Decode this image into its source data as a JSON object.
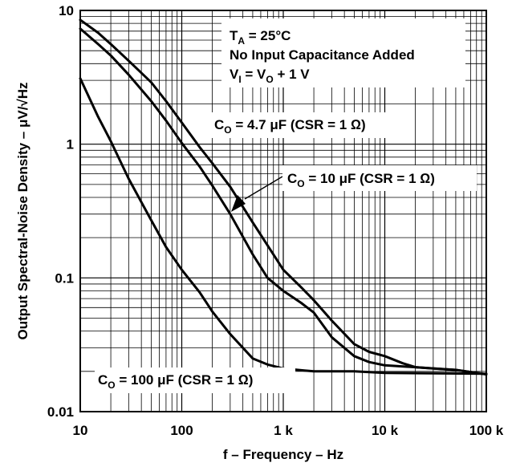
{
  "chart_data": {
    "type": "line",
    "title": "",
    "xlabel": "f – Frequency – Hz",
    "ylabel": "Output Spectral-Noise Density –  μV/√Hz",
    "xscale": "log",
    "yscale": "log",
    "xlim": [
      10,
      100000
    ],
    "ylim": [
      0.01,
      10
    ],
    "grid": true,
    "x_ticks": [
      {
        "value": 10,
        "label": "10"
      },
      {
        "value": 100,
        "label": "100"
      },
      {
        "value": 1000,
        "label": "1 k"
      },
      {
        "value": 10000,
        "label": "10 k"
      },
      {
        "value": 100000,
        "label": "100 k"
      }
    ],
    "y_ticks": [
      {
        "value": 10,
        "label": "10"
      },
      {
        "value": 1,
        "label": "1"
      },
      {
        "value": 0.1,
        "label": "0.1"
      },
      {
        "value": 0.01,
        "label": "0.01"
      }
    ],
    "conditions": {
      "line1": {
        "main": "T",
        "sub": "A",
        "rest": " = 25°C"
      },
      "line2": "No Input Capacitance Added",
      "line3": {
        "main1": "V",
        "sub1": "I",
        "mid": " = V",
        "sub2": "O",
        "rest": " + 1 V"
      }
    },
    "series": [
      {
        "label": {
          "main": "C",
          "sub": "O",
          "rest": " = 4.7 μF (CSR = 1 Ω)"
        },
        "points": [
          [
            10,
            8.5
          ],
          [
            15,
            6.8
          ],
          [
            20,
            5.6
          ],
          [
            30,
            4.2
          ],
          [
            50,
            2.9
          ],
          [
            70,
            2.1
          ],
          [
            100,
            1.45
          ],
          [
            150,
            0.95
          ],
          [
            200,
            0.72
          ],
          [
            300,
            0.48
          ],
          [
            500,
            0.26
          ],
          [
            700,
            0.175
          ],
          [
            1000,
            0.115
          ],
          [
            1500,
            0.085
          ],
          [
            2000,
            0.068
          ],
          [
            3000,
            0.048
          ],
          [
            5000,
            0.032
          ],
          [
            7000,
            0.028
          ],
          [
            10000,
            0.026
          ],
          [
            15000,
            0.023
          ],
          [
            20000,
            0.0215
          ],
          [
            30000,
            0.021
          ],
          [
            50000,
            0.0205
          ],
          [
            100000,
            0.019
          ]
        ]
      },
      {
        "label": {
          "main": "C",
          "sub": "O",
          "rest": " = 10 μF (CSR = 1 Ω)"
        },
        "points": [
          [
            10,
            7.3
          ],
          [
            15,
            5.6
          ],
          [
            20,
            4.6
          ],
          [
            30,
            3.3
          ],
          [
            50,
            2.1
          ],
          [
            70,
            1.5
          ],
          [
            100,
            1.02
          ],
          [
            150,
            0.68
          ],
          [
            200,
            0.49
          ],
          [
            300,
            0.3
          ],
          [
            500,
            0.15
          ],
          [
            700,
            0.1
          ],
          [
            1000,
            0.08
          ],
          [
            1500,
            0.065
          ],
          [
            2000,
            0.055
          ],
          [
            3000,
            0.036
          ],
          [
            5000,
            0.026
          ],
          [
            7000,
            0.0235
          ],
          [
            10000,
            0.0222
          ],
          [
            20000,
            0.0215
          ],
          [
            50000,
            0.0205
          ],
          [
            100000,
            0.019
          ]
        ]
      },
      {
        "label": {
          "main": "C",
          "sub": "O",
          "rest": " = 100 μF (CSR = 1 Ω)"
        },
        "points": [
          [
            10,
            3.1
          ],
          [
            15,
            1.6
          ],
          [
            20,
            1.05
          ],
          [
            30,
            0.55
          ],
          [
            50,
            0.27
          ],
          [
            70,
            0.17
          ],
          [
            100,
            0.115
          ],
          [
            150,
            0.078
          ],
          [
            200,
            0.056
          ],
          [
            300,
            0.038
          ],
          [
            500,
            0.025
          ],
          [
            700,
            0.0225
          ],
          [
            1000,
            0.021
          ],
          [
            2000,
            0.02
          ],
          [
            5000,
            0.02
          ],
          [
            10000,
            0.0195
          ],
          [
            100000,
            0.0192
          ]
        ]
      }
    ]
  }
}
